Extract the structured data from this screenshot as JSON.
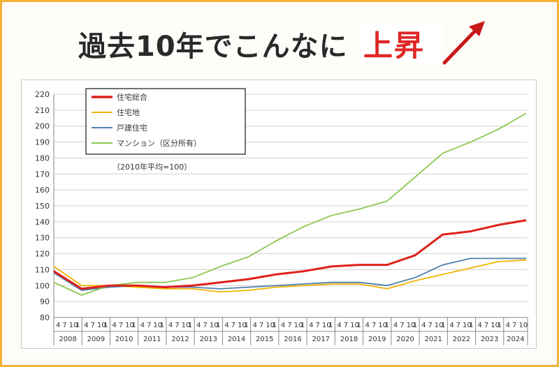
{
  "headline": {
    "plain": "過去10年でこんなに",
    "highlight": "上昇"
  },
  "colors": {
    "total": "#e0201b",
    "land": "#f0b400",
    "house": "#4f7fad",
    "condo": "#8cc850",
    "frame": "#f2b23a"
  },
  "chart_data": {
    "type": "line",
    "title": "",
    "xlabel": "",
    "ylabel": "",
    "ylim": [
      80,
      220
    ],
    "yticks": [
      80,
      90,
      100,
      110,
      120,
      130,
      140,
      150,
      160,
      170,
      180,
      190,
      200,
      210,
      220
    ],
    "note": "（2010年平均=100）",
    "grid": true,
    "legend": "top-left",
    "x_year_labels": [
      "2008",
      "2009",
      "2010",
      "2011",
      "2012",
      "2013",
      "2014",
      "2015",
      "2016",
      "2017",
      "2018",
      "2019",
      "2020",
      "2021",
      "2022",
      "2023",
      "2024"
    ],
    "x_month_labels": [
      "4",
      "7",
      "10",
      "1"
    ],
    "x_last_year_month_labels": [
      "4",
      "7",
      "10"
    ],
    "x": [
      "2008",
      "2009",
      "2010",
      "2011",
      "2012",
      "2013",
      "2014",
      "2015",
      "2016",
      "2017",
      "2018",
      "2019",
      "2020",
      "2021",
      "2022",
      "2023",
      "2024",
      "2024-10"
    ],
    "series": [
      {
        "name": "住宅総合",
        "color": "#e0201b",
        "values": [
          109,
          98,
          100,
          100,
          99,
          100,
          102,
          104,
          107,
          109,
          112,
          113,
          113,
          119,
          132,
          134,
          138,
          141
        ]
      },
      {
        "name": "住宅地",
        "color": "#f0b400",
        "values": [
          112,
          100,
          100,
          99,
          98,
          98,
          96,
          97,
          99,
          100,
          101,
          101,
          98,
          103,
          107,
          111,
          115,
          116
        ]
      },
      {
        "name": "戸建住宅",
        "color": "#4f7fad",
        "values": [
          108,
          97,
          99,
          100,
          99,
          99,
          98,
          99,
          100,
          101,
          102,
          102,
          100,
          105,
          113,
          117,
          117,
          117
        ]
      },
      {
        "name": "マンション（区分所有）",
        "color": "#8cc850",
        "values": [
          102,
          94,
          100,
          102,
          102,
          105,
          112,
          118,
          128,
          137,
          144,
          148,
          153,
          168,
          183,
          190,
          198,
          208
        ]
      }
    ]
  }
}
